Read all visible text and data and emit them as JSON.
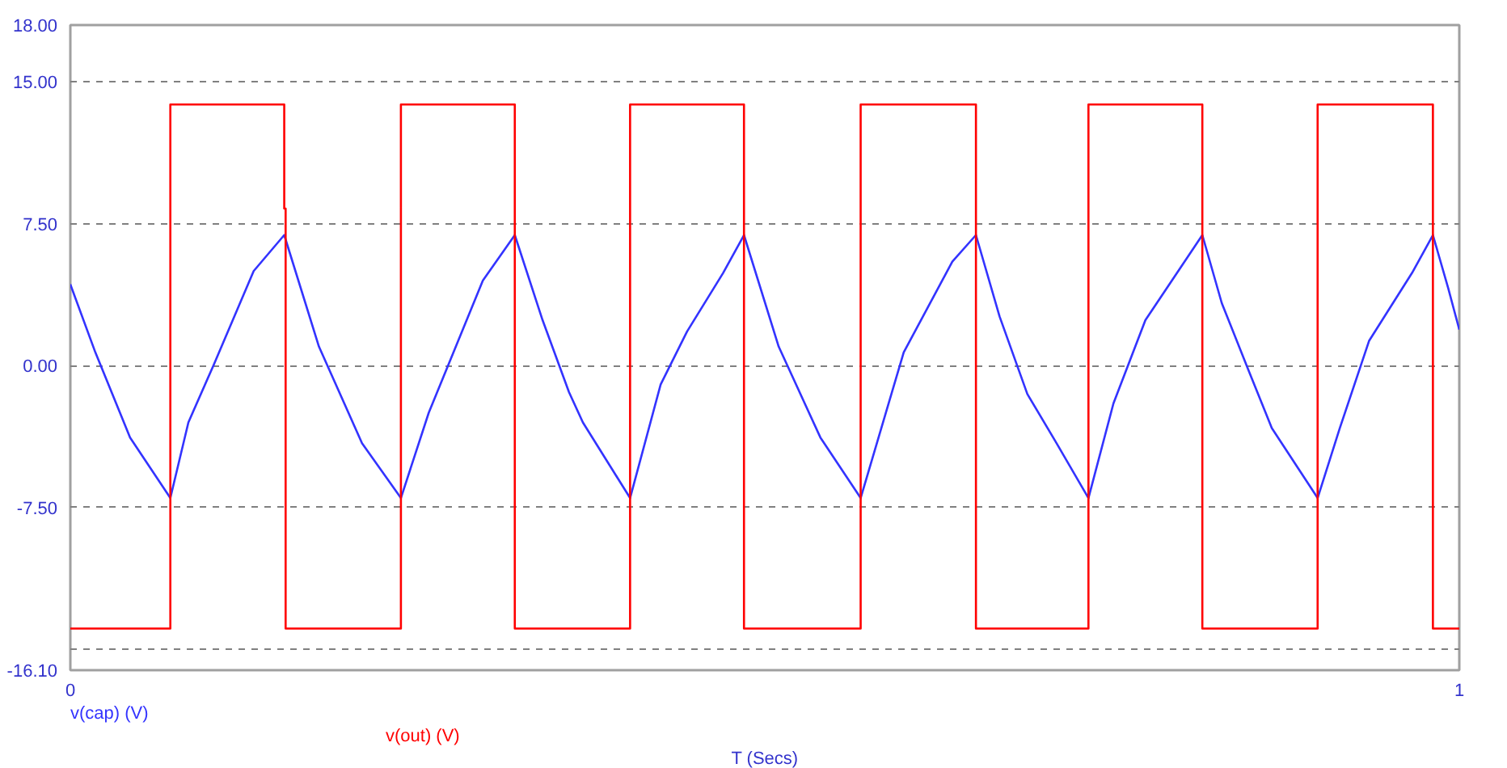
{
  "chart_data": {
    "type": "line",
    "xlabel": "T (Secs)",
    "xlim": [
      0,
      1
    ],
    "xticks": [
      0,
      1
    ],
    "ylim": [
      -16.1,
      18
    ],
    "yticks": [
      {
        "value": 18,
        "label": "18.00"
      },
      {
        "value": 15,
        "label": "15.00"
      },
      {
        "value": 7.5,
        "label": "7.50"
      },
      {
        "value": 0,
        "label": "0.00"
      },
      {
        "value": -7.5,
        "label": "-7.50"
      },
      {
        "value": -15,
        "label": null
      },
      {
        "value": -16.1,
        "label": "-16.10"
      }
    ],
    "grid": "y",
    "line_style": "solid",
    "marker": "none",
    "series": [
      {
        "name": "v(cap) (V)",
        "color": "#3333ff",
        "x": [
          0,
          0.018,
          0.043,
          0.072,
          0.085,
          0.103,
          0.132,
          0.154,
          0.179,
          0.21,
          0.238,
          0.258,
          0.297,
          0.32,
          0.34,
          0.359,
          0.369,
          0.403,
          0.425,
          0.444,
          0.47,
          0.485,
          0.51,
          0.54,
          0.569,
          0.6,
          0.635,
          0.652,
          0.669,
          0.689,
          0.71,
          0.733,
          0.751,
          0.774,
          0.815,
          0.829,
          0.848,
          0.865,
          0.898,
          0.914,
          0.935,
          0.966,
          0.981,
          0.992,
          1
        ],
        "values": [
          4.3,
          0.7,
          -3.8,
          -7.0,
          -3.0,
          0,
          5.0,
          6.9,
          1.0,
          -4.1,
          -7.0,
          -2.5,
          4.5,
          6.9,
          2.4,
          -1.4,
          -3.0,
          -7.0,
          -1.0,
          1.8,
          4.9,
          6.9,
          1.0,
          -3.8,
          -7.0,
          0.7,
          5.5,
          6.9,
          2.6,
          -1.5,
          -4.1,
          -7.0,
          -2.0,
          2.4,
          6.9,
          3.3,
          -0.2,
          -3.3,
          -7.0,
          -3.3,
          1.3,
          4.9,
          6.9,
          4.1,
          1.9
        ]
      },
      {
        "name": "v(out) (V)",
        "color": "#ff0000",
        "x": [
          0,
          0.072,
          0.072,
          0.154,
          0.154,
          0.155,
          0.155,
          0.238,
          0.238,
          0.32,
          0.32,
          0.403,
          0.403,
          0.485,
          0.485,
          0.569,
          0.569,
          0.652,
          0.652,
          0.733,
          0.733,
          0.815,
          0.815,
          0.898,
          0.898,
          0.981,
          0.981,
          1
        ],
        "values": [
          -13.9,
          -13.9,
          13.8,
          13.8,
          8.3,
          8.3,
          -13.9,
          -13.9,
          13.8,
          13.8,
          -13.9,
          -13.9,
          13.8,
          13.8,
          -13.9,
          -13.9,
          13.8,
          13.8,
          -13.9,
          -13.9,
          13.8,
          13.8,
          -13.9,
          -13.9,
          13.8,
          13.8,
          -13.9,
          -13.9
        ]
      }
    ]
  }
}
